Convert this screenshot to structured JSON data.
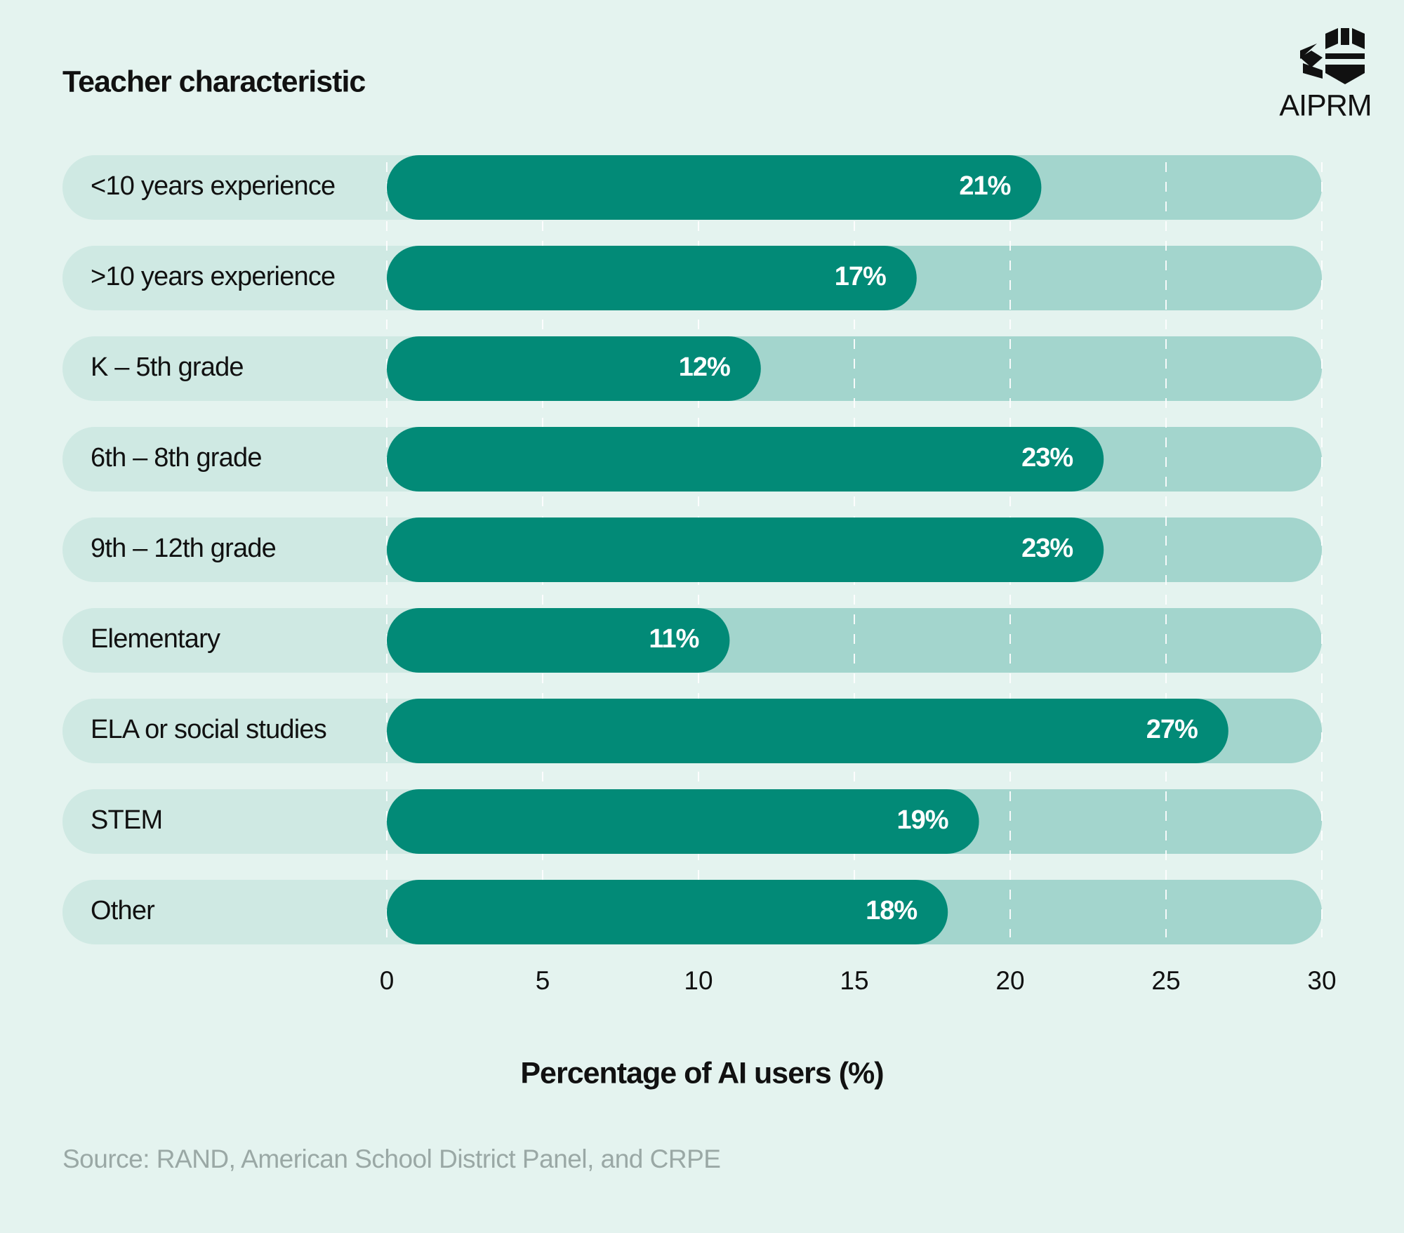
{
  "chart_data": {
    "type": "bar",
    "orientation": "horizontal",
    "title": "Teacher characteristic",
    "categories": [
      "<10 years experience",
      ">10 years experience",
      "K – 5th grade",
      "6th – 8th grade",
      "9th – 12th grade",
      "Elementary",
      "ELA or social studies",
      "STEM",
      "Other"
    ],
    "values": [
      21,
      17,
      12,
      23,
      23,
      11,
      27,
      19,
      18
    ],
    "value_labels": [
      "21%",
      "17%",
      "12%",
      "23%",
      "23%",
      "11%",
      "27%",
      "19%",
      "18%"
    ],
    "color": "#028a77",
    "xlim": [
      0,
      30
    ],
    "xticks": [
      0,
      5,
      10,
      15,
      20,
      25,
      30
    ],
    "grid": true,
    "xlabel": "Percentage of AI users (%)",
    "source": "Source: RAND, American School District Panel, and CRPE",
    "brand": "AIPRM"
  }
}
